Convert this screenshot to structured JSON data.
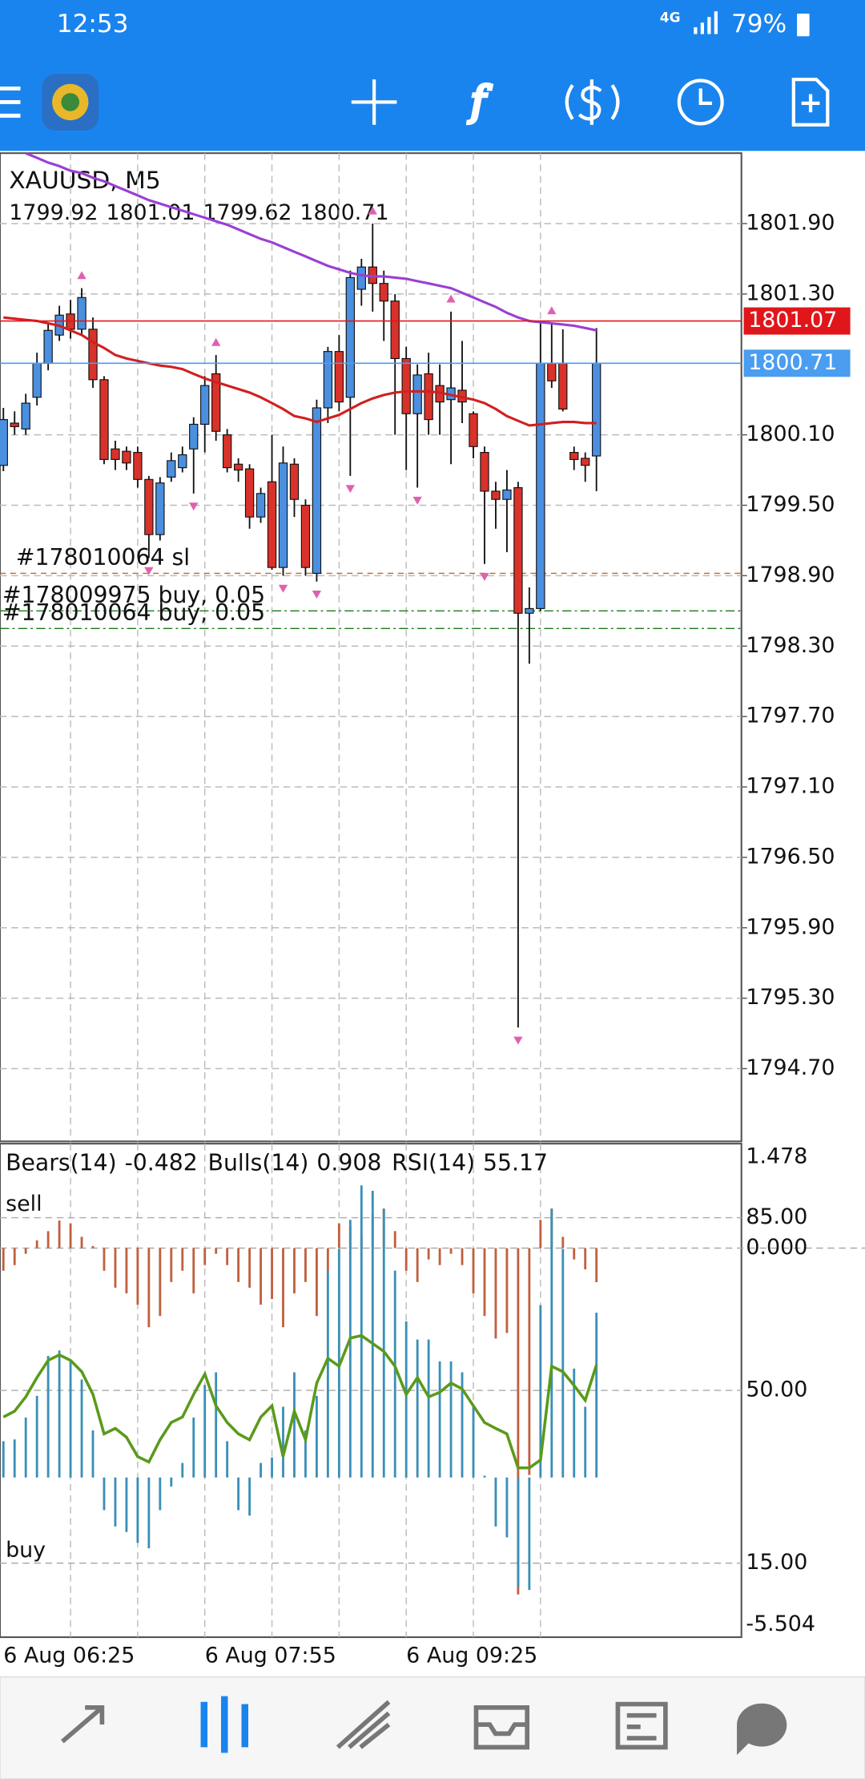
{
  "status_bar": {
    "time": "12:53",
    "network": "4G",
    "battery": "79%"
  },
  "chart_data": [
    {
      "type": "candlestick",
      "title": "XAUUSD, M5",
      "categories": [
        "6 Aug 06:25",
        null,
        null,
        null,
        null,
        null,
        null,
        null,
        null,
        null,
        null,
        null,
        null,
        null,
        null,
        null,
        null,
        null,
        "6 Aug 07:55",
        null,
        null,
        null,
        null,
        null,
        null,
        null,
        null,
        null,
        null,
        null,
        null,
        null,
        null,
        null,
        null,
        null,
        "6 Aug 09:25",
        null,
        null,
        null,
        null,
        null,
        null,
        null,
        null,
        null,
        null,
        null,
        null,
        null,
        null,
        null,
        null,
        null
      ],
      "candles": {
        "up_color": "#4a8fe0",
        "down_color": "#d8322a",
        "open": [
          1799.84,
          1800.2,
          1800.15,
          1800.42,
          1800.71,
          1800.95,
          1801.13,
          1801,
          1801,
          1800.57,
          1799.98,
          1799.96,
          1799.95,
          1799.72,
          1799.25,
          1799.74,
          1799.82,
          1799.98,
          1800.19,
          1800.62,
          1800.1,
          1799.85,
          1799.81,
          1799.4,
          1799.7,
          1798.97,
          1799.85,
          1799.5,
          1798.92,
          1800.33,
          1800.81,
          1800.42,
          1801.34,
          1801.53,
          1801.39,
          1801.24,
          1800.75,
          1800.28,
          1800.62,
          1800.52,
          1800.4,
          1800.48,
          1800.28,
          1799.95,
          1799.62,
          1799.55,
          1799.65,
          1798.58,
          1798.62,
          1800.71,
          1800.71,
          1799.95,
          1799.9,
          1799.92
        ],
        "high": [
          1800.33,
          1800.3,
          1800.45,
          1800.8,
          1801.05,
          1801.2,
          1801.25,
          1801.35,
          1801.1,
          1800.6,
          1800.05,
          1800,
          1800,
          1799.75,
          1799.74,
          1799.95,
          1800,
          1800.25,
          1800.6,
          1800.78,
          1800.15,
          1799.9,
          1799.85,
          1799.65,
          1800.1,
          1800,
          1799.9,
          1799.55,
          1800.4,
          1800.85,
          1800.95,
          1801.5,
          1801.6,
          1801.9,
          1801.5,
          1801.3,
          1800.85,
          1800.7,
          1800.8,
          1800.7,
          1801.15,
          1800.9,
          1800.3,
          1800,
          1799.7,
          1799.8,
          1799.7,
          1798.8,
          1801.05,
          1801.05,
          1801,
          1800,
          1799.95,
          1801.01
        ],
        "low": [
          1799.79,
          1800.1,
          1800.1,
          1800.35,
          1800.65,
          1800.9,
          1800.92,
          1800.95,
          1800.5,
          1799.85,
          1799.8,
          1799.8,
          1799.65,
          1799.05,
          1799.2,
          1799.7,
          1799.78,
          1799.6,
          1799.95,
          1800.05,
          1799.78,
          1799.7,
          1799.3,
          1799.35,
          1798.95,
          1798.9,
          1799.4,
          1798.9,
          1798.85,
          1800.2,
          1800.3,
          1799.75,
          1801.2,
          1801.15,
          1800.9,
          1800.1,
          1799.8,
          1799.65,
          1800.1,
          1800.1,
          1799.85,
          1800.2,
          1799.9,
          1799,
          1799.3,
          1799.1,
          1795.05,
          1798.15,
          1798.6,
          1800.5,
          1800.3,
          1799.8,
          1799.7,
          1799.62
        ],
        "close": [
          1800.23,
          1800.17,
          1800.37,
          1800.71,
          1800.99,
          1801.12,
          1801,
          1801.27,
          1800.57,
          1799.89,
          1799.89,
          1799.86,
          1799.72,
          1799.25,
          1799.69,
          1799.88,
          1799.93,
          1800.19,
          1800.52,
          1800.13,
          1799.82,
          1799.8,
          1799.4,
          1799.6,
          1798.97,
          1799.86,
          1799.55,
          1798.97,
          1800.33,
          1800.81,
          1800.38,
          1801.44,
          1801.53,
          1801.39,
          1801.24,
          1800.75,
          1800.28,
          1800.61,
          1800.23,
          1800.38,
          1800.5,
          1800.38,
          1800,
          1799.62,
          1799.55,
          1799.63,
          1798.58,
          1798.62,
          1800.71,
          1800.56,
          1800.32,
          1799.89,
          1799.84,
          1800.71
        ]
      },
      "moving_averages": [
        {
          "color": "#9a3fd4",
          "values": [
            null,
            null,
            1802.5,
            1802.46,
            1802.42,
            1802.39,
            1802.35,
            1802.33,
            1802.29,
            1802.26,
            1802.22,
            1802.18,
            1802.14,
            1802.1,
            1802.07,
            1802.04,
            1802.01,
            1801.98,
            1801.95,
            1801.92,
            1801.89,
            1801.85,
            1801.81,
            1801.77,
            1801.74,
            1801.7,
            1801.66,
            1801.62,
            1801.58,
            1801.54,
            1801.51,
            1801.48,
            1801.46,
            1801.45,
            1801.45,
            1801.44,
            1801.43,
            1801.41,
            1801.39,
            1801.37,
            1801.35,
            1801.31,
            1801.27,
            1801.23,
            1801.19,
            1801.14,
            1801.1,
            1801.07,
            1801.06,
            1801.05,
            1801.04,
            1801.03,
            1801.01,
            1800.99
          ]
        },
        {
          "color": "#d21f1f",
          "values": [
            1801.1,
            1801.09,
            1801.08,
            1801.07,
            1801.05,
            1801.03,
            1800.99,
            1800.95,
            1800.89,
            1800.84,
            1800.78,
            1800.75,
            1800.73,
            1800.71,
            1800.69,
            1800.68,
            1800.66,
            1800.62,
            1800.58,
            1800.55,
            1800.52,
            1800.49,
            1800.46,
            1800.42,
            1800.37,
            1800.32,
            1800.26,
            1800.24,
            1800.21,
            1800.24,
            1800.27,
            1800.32,
            1800.37,
            1800.41,
            1800.44,
            1800.46,
            1800.47,
            1800.47,
            1800.47,
            1800.46,
            1800.44,
            1800.42,
            1800.4,
            1800.37,
            1800.32,
            1800.26,
            1800.22,
            1800.18,
            1800.19,
            1800.2,
            1800.21,
            1800.21,
            1800.2,
            1800.2
          ]
        }
      ],
      "fractals_up": [
        7,
        19,
        33,
        40,
        49
      ],
      "fractals_down": [
        13,
        17,
        25,
        28,
        31,
        37,
        43,
        46
      ],
      "fractal_color": "#e060b0",
      "ylim": [
        1794.08,
        1802.5
      ],
      "yticks": [
        {
          "value": 1801.9,
          "label": "1801.90"
        },
        {
          "value": 1801.3,
          "label": "1801.30"
        },
        {
          "value": 1800.1,
          "label": "1800.10"
        },
        {
          "value": 1799.5,
          "label": "1799.50"
        },
        {
          "value": 1798.9,
          "label": "1798.90"
        },
        {
          "value": 1798.3,
          "label": "1798.30"
        },
        {
          "value": 1797.7,
          "label": "1797.70"
        },
        {
          "value": 1797.1,
          "label": "1797.10"
        },
        {
          "value": 1796.5,
          "label": "1796.50"
        },
        {
          "value": 1795.9,
          "label": "1795.90"
        },
        {
          "value": 1795.3,
          "label": "1795.30"
        },
        {
          "value": 1794.7,
          "label": "1794.70"
        }
      ],
      "grid": true,
      "price_lines": [
        {
          "value": 1801.07,
          "color": "#e0161b"
        },
        {
          "value": 1800.71,
          "color": "#4a9df0"
        }
      ],
      "order_lines": [
        {
          "label": "#178010064 sl",
          "value": 1798.92,
          "color": "#c8641e"
        },
        {
          "label": "#178009975 buy, 0.05",
          "value": 1798.6,
          "color": "#1a7a1a"
        },
        {
          "label": "#178010064 buy, 0.05",
          "value": 1798.45,
          "color": "#1a7a1a"
        }
      ]
    },
    {
      "type": "oscillator",
      "indicators": [
        {
          "name": "Bears(14)",
          "color": "#c0603f",
          "values": [
            -0.32,
            -0.24,
            -0.08,
            0.11,
            0.24,
            0.39,
            0.35,
            0.16,
            0.03,
            -0.32,
            -0.56,
            -0.64,
            -0.8,
            -1.12,
            -0.96,
            -0.48,
            -0.32,
            -0.64,
            -0.24,
            -0.08,
            -0.24,
            -0.48,
            -0.56,
            -0.8,
            -0.72,
            -1.12,
            -0.64,
            -0.48,
            -0.96,
            -0.32,
            0.35,
            0.32,
            0.16,
            0.48,
            0.56,
            0.24,
            -0.32,
            -0.48,
            -0.16,
            -0.24,
            -0.08,
            -0.24,
            -0.64,
            -0.96,
            -1.28,
            -1.2,
            -4.9,
            -3.21,
            0.4,
            0.56,
            0.16,
            -0.16,
            -0.3,
            -0.482
          ]
        },
        {
          "name": "Bulls(14)",
          "color": "#3a8fb7",
          "axis": "y3",
          "values": [
            0.2,
            0.21,
            0.33,
            0.45,
            0.67,
            0.7,
            0.64,
            0.54,
            0.26,
            -0.18,
            -0.27,
            -0.3,
            -0.36,
            -0.39,
            -0.18,
            -0.05,
            0.08,
            0.33,
            0.51,
            0.58,
            0.2,
            -0.18,
            -0.21,
            0.08,
            0.11,
            0.39,
            0.58,
            0.26,
            0.45,
            1.14,
            1.26,
            1.42,
            1.61,
            1.58,
            1.48,
            1.14,
            0.86,
            0.76,
            0.76,
            0.64,
            0.64,
            0.58,
            0.39,
            0.01,
            -0.27,
            -0.33,
            -0.6,
            -0.62,
            0.95,
            1.48,
            1.26,
            0.6,
            0.39,
            0.908
          ]
        },
        {
          "name": "RSI(14)",
          "color": "#5a9a1a",
          "axis": "y2",
          "values": [
            44.6,
            45.8,
            48.7,
            52.6,
            56.1,
            57.2,
            56.1,
            53.8,
            49.2,
            41.2,
            42.3,
            40.5,
            36.6,
            35.5,
            40,
            43.5,
            44.6,
            49.2,
            53.3,
            46.9,
            43.5,
            41.2,
            40,
            44.6,
            46.9,
            36.6,
            45.8,
            40,
            51.5,
            56.5,
            54.9,
            60.6,
            61.1,
            59.5,
            57.9,
            54.9,
            49.2,
            52.6,
            48.7,
            49.6,
            51.5,
            50.3,
            46.9,
            43.5,
            42.3,
            41.2,
            34.3,
            34.3,
            35.9,
            54.9,
            53.8,
            51,
            48,
            55.17
          ]
        }
      ],
      "level_labels": [
        "sell",
        "buy"
      ],
      "ylim": [
        -5.504,
        1.478
      ],
      "yticks": [
        1.478,
        {
          "value": 0,
          "label": "0.000"
        },
        -5.504
      ],
      "y2lim": [
        0,
        100
      ],
      "y2ticks": [
        {
          "value": 85,
          "label": "85.00"
        },
        {
          "value": 50,
          "label": "50.00"
        },
        {
          "value": 15,
          "label": "15.00"
        }
      ],
      "y3lim": [
        -0.88,
        1.84
      ]
    }
  ]
}
